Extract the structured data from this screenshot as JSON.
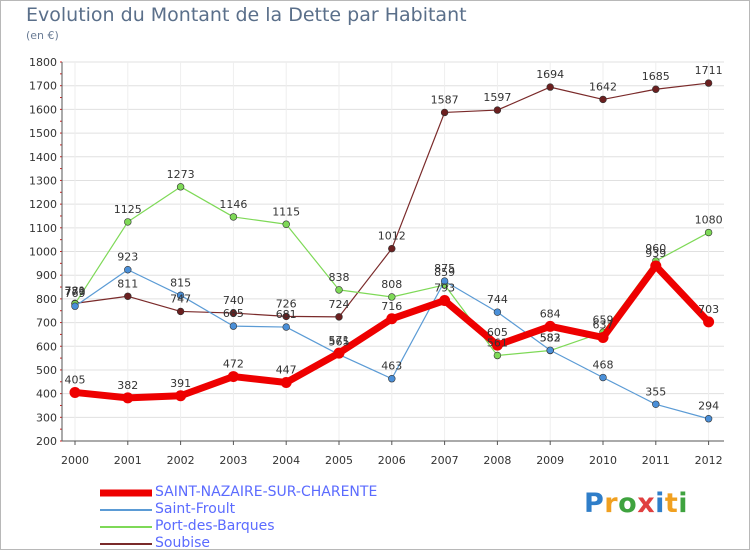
{
  "chart_data": {
    "type": "line",
    "title": "Evolution du Montant de la Dette par Habitant",
    "subtitle": "(en €)",
    "xlabel": "",
    "ylabel": "",
    "categories": [
      "2000",
      "2001",
      "2002",
      "2003",
      "2004",
      "2005",
      "2006",
      "2007",
      "2008",
      "2009",
      "2010",
      "2011",
      "2012"
    ],
    "ylim": [
      200,
      1800
    ],
    "yticks": [
      200,
      300,
      400,
      500,
      600,
      700,
      800,
      900,
      1000,
      1100,
      1200,
      1300,
      1400,
      1500,
      1600,
      1700,
      1800
    ],
    "grid": true,
    "legend_position": "bottom-left",
    "series": [
      {
        "name": "SAINT-NAZAIRE-SUR-CHARENTE",
        "color": "#ee0000",
        "values": [
          405,
          382,
          391,
          472,
          447,
          571,
          716,
          793,
          605,
          684,
          637,
          939,
          703
        ]
      },
      {
        "name": "Saint-Froult",
        "color": "#5b9bd5",
        "values": [
          769,
          923,
          815,
          685,
          681,
          565,
          463,
          875,
          744,
          583,
          468,
          355,
          294
        ]
      },
      {
        "name": "Port-des-Barques",
        "color": "#7ed957",
        "values": [
          779,
          1125,
          1273,
          1146,
          1115,
          838,
          808,
          859,
          561,
          582,
          659,
          960,
          1080
        ]
      },
      {
        "name": "Soubise",
        "color": "#7a2a2a",
        "values": [
          781,
          811,
          747,
          740,
          726,
          724,
          1012,
          1587,
          1597,
          1694,
          1642,
          1685,
          1711
        ]
      }
    ]
  },
  "logo": {
    "letters": [
      "P",
      "r",
      "o",
      "x",
      "i",
      "t",
      "i"
    ],
    "colors": [
      "#2f7ec9",
      "#f0a020",
      "#3fa33f",
      "#e04040",
      "#2f7ec9",
      "#f0a020",
      "#3fa33f"
    ]
  }
}
